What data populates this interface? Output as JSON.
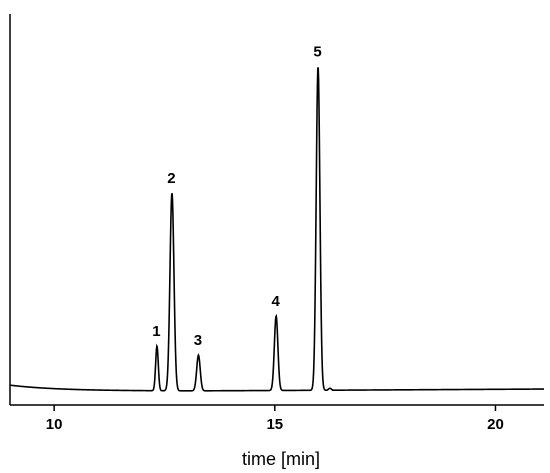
{
  "chart_data": {
    "type": "line",
    "title": "",
    "xlabel": "time [min]",
    "ylabel": "",
    "xlim": [
      9,
      21.1
    ],
    "ylim": [
      0,
      100
    ],
    "x_ticks": [
      10,
      15,
      20
    ],
    "x_tick_labels": [
      "10",
      "15",
      "20"
    ],
    "grid": false,
    "legend": "none",
    "baseline": {
      "start_time": 9,
      "start_level": 1.8,
      "min_level": 0,
      "end_level": 0.6
    },
    "peaks": [
      {
        "label": "1",
        "time": 12.33,
        "height": 13.8
      },
      {
        "label": "2",
        "time": 12.67,
        "height": 61.1
      },
      {
        "label": "3",
        "time": 13.27,
        "height": 11.0
      },
      {
        "label": "4",
        "time": 15.03,
        "height": 23.0
      },
      {
        "label": "5",
        "time": 15.98,
        "height": 100.0
      }
    ],
    "line_color": "#000000"
  }
}
